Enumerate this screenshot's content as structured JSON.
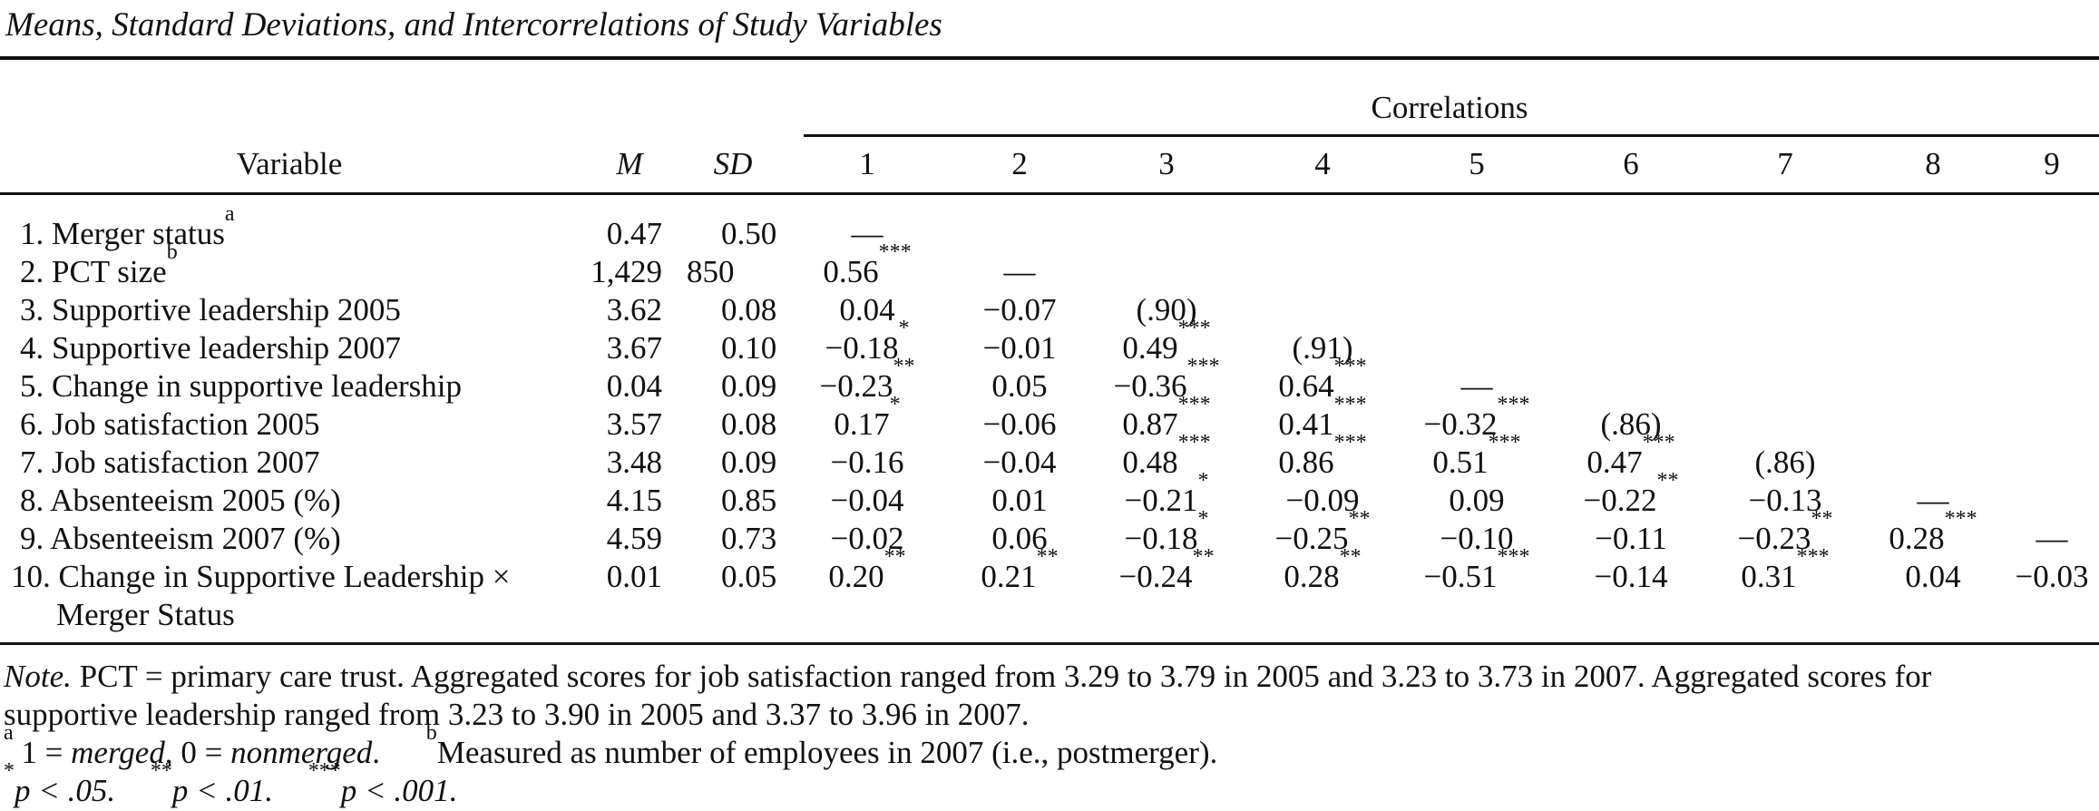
{
  "title": "Means, Standard Deviations, and Intercorrelations of Study Variables",
  "header": {
    "correlations": "Correlations",
    "variable": "Variable",
    "mean": "M",
    "sd": "SD",
    "corr_cols": [
      "1",
      "2",
      "3",
      "4",
      "5",
      "6",
      "7",
      "8",
      "9"
    ]
  },
  "rows": [
    {
      "label": "1. Merger status",
      "sup": "a",
      "label2": "",
      "m": "0.47",
      "sd": "0.50",
      "corr": [
        {
          "v": "—",
          "s": ""
        }
      ]
    },
    {
      "label": "2. PCT size",
      "sup": "b",
      "label2": "",
      "m": "1,429",
      "sd": "850",
      "corr": [
        {
          "v": "0.56",
          "s": "***"
        },
        {
          "v": "—",
          "s": ""
        }
      ]
    },
    {
      "label": "3. Supportive leadership 2005",
      "sup": "",
      "label2": "",
      "m": "3.62",
      "sd": "0.08",
      "corr": [
        {
          "v": "0.04",
          "s": ""
        },
        {
          "v": "−0.07",
          "s": ""
        },
        {
          "v": "(.90)",
          "s": ""
        }
      ]
    },
    {
      "label": "4. Supportive leadership 2007",
      "sup": "",
      "label2": "",
      "m": "3.67",
      "sd": "0.10",
      "corr": [
        {
          "v": "−0.18",
          "s": "*"
        },
        {
          "v": "−0.01",
          "s": ""
        },
        {
          "v": "0.49",
          "s": "***"
        },
        {
          "v": "(.91)",
          "s": ""
        }
      ]
    },
    {
      "label": "5. Change in supportive leadership",
      "sup": "",
      "label2": "",
      "m": "0.04",
      "sd": "0.09",
      "corr": [
        {
          "v": "−0.23",
          "s": "**"
        },
        {
          "v": "0.05",
          "s": ""
        },
        {
          "v": "−0.36",
          "s": "***"
        },
        {
          "v": "0.64",
          "s": "***"
        },
        {
          "v": "—",
          "s": ""
        }
      ]
    },
    {
      "label": "6. Job satisfaction 2005",
      "sup": "",
      "label2": "",
      "m": "3.57",
      "sd": "0.08",
      "corr": [
        {
          "v": "0.17",
          "s": "*"
        },
        {
          "v": "−0.06",
          "s": ""
        },
        {
          "v": "0.87",
          "s": "***"
        },
        {
          "v": "0.41",
          "s": "***"
        },
        {
          "v": "−0.32",
          "s": "***"
        },
        {
          "v": "(.86)",
          "s": ""
        }
      ]
    },
    {
      "label": "7. Job satisfaction 2007",
      "sup": "",
      "label2": "",
      "m": "3.48",
      "sd": "0.09",
      "corr": [
        {
          "v": "−0.16",
          "s": ""
        },
        {
          "v": "−0.04",
          "s": ""
        },
        {
          "v": "0.48",
          "s": "***"
        },
        {
          "v": "0.86",
          "s": "***"
        },
        {
          "v": "0.51",
          "s": "***"
        },
        {
          "v": "0.47",
          "s": "***"
        },
        {
          "v": "(.86)",
          "s": ""
        }
      ]
    },
    {
      "label": "8. Absenteeism 2005 (%)",
      "sup": "",
      "label2": "",
      "m": "4.15",
      "sd": "0.85",
      "corr": [
        {
          "v": "−0.04",
          "s": ""
        },
        {
          "v": "0.01",
          "s": ""
        },
        {
          "v": "−0.21",
          "s": "*"
        },
        {
          "v": "−0.09",
          "s": ""
        },
        {
          "v": "0.09",
          "s": ""
        },
        {
          "v": "−0.22",
          "s": "**"
        },
        {
          "v": "−0.13",
          "s": ""
        },
        {
          "v": "—",
          "s": ""
        }
      ]
    },
    {
      "label": "9. Absenteeism 2007 (%)",
      "sup": "",
      "label2": "",
      "m": "4.59",
      "sd": "0.73",
      "corr": [
        {
          "v": "−0.02",
          "s": ""
        },
        {
          "v": "0.06",
          "s": ""
        },
        {
          "v": "−0.18",
          "s": "*"
        },
        {
          "v": "−0.25",
          "s": "**"
        },
        {
          "v": "−0.10",
          "s": ""
        },
        {
          "v": "−0.11",
          "s": ""
        },
        {
          "v": "−0.23",
          "s": "**"
        },
        {
          "v": "0.28",
          "s": "***"
        },
        {
          "v": "—",
          "s": ""
        }
      ]
    },
    {
      "label": "10. Change in Supportive Leadership ×",
      "sup": "",
      "label2": "Merger Status",
      "m": "0.01",
      "sd": "0.05",
      "corr": [
        {
          "v": "0.20",
          "s": "**"
        },
        {
          "v": "0.21",
          "s": "**"
        },
        {
          "v": "−0.24",
          "s": "**"
        },
        {
          "v": "0.28",
          "s": "**"
        },
        {
          "v": "−0.51",
          "s": "***"
        },
        {
          "v": "−0.14",
          "s": ""
        },
        {
          "v": "0.31",
          "s": "***"
        },
        {
          "v": "0.04",
          "s": ""
        },
        {
          "v": "−0.03",
          "s": ""
        }
      ]
    }
  ],
  "notes": {
    "note_label": "Note.",
    "note_line1": "PCT = primary care trust. Aggregated scores for job satisfaction ranged from 3.29 to 3.79 in 2005 and 3.23 to 3.73 in 2007. Aggregated scores for",
    "note_line2": "supportive leadership ranged from 3.23 to 3.90 in 2005 and 3.37 to 3.96 in 2007.",
    "fn_a_mark": "a",
    "fn_a_pre": " 1 = ",
    "fn_a_merged": "merged",
    "fn_a_mid": ", 0 = ",
    "fn_a_nonmerged": "nonmerged",
    "fn_a_end": ".",
    "fn_b_mark": "b",
    "fn_b_text": "Measured as number of employees in 2007 (i.e., postmerger).",
    "sig1_mark": "*",
    "sig1_text": "p < .05.",
    "sig2_mark": "**",
    "sig2_text": "p < .01.",
    "sig3_mark": "***",
    "sig3_text": "p < .001."
  }
}
